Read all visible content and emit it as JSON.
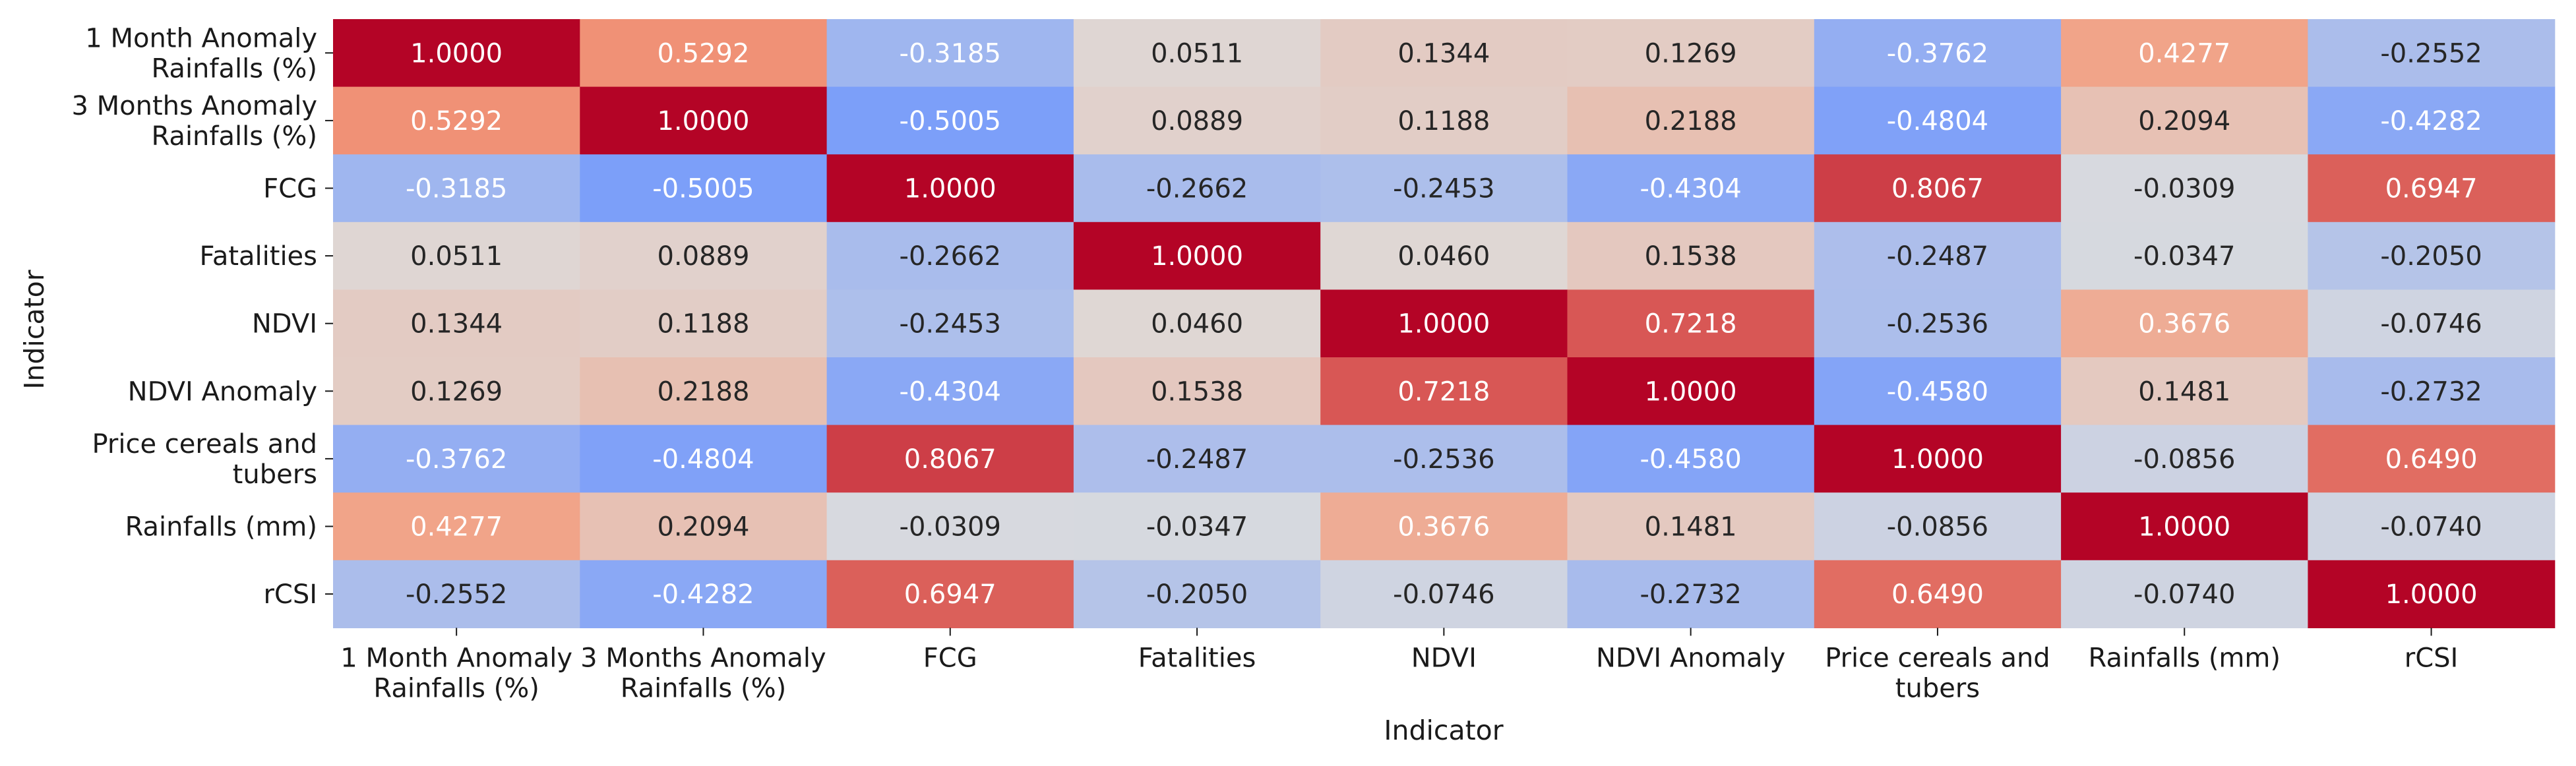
{
  "chart_data": {
    "type": "heatmap",
    "xlabel": "Indicator",
    "ylabel": "Indicator",
    "colormap": "coolwarm",
    "vmin": -1,
    "vmax": 1,
    "colorbar": false,
    "rows": [
      [
        "1 Month Anomaly",
        "Rainfalls (%)"
      ],
      [
        "3 Months Anomaly",
        "Rainfalls (%)"
      ],
      [
        "FCG"
      ],
      [
        "Fatalities"
      ],
      [
        "NDVI"
      ],
      [
        "NDVI Anomaly"
      ],
      [
        "Price cereals and",
        "tubers"
      ],
      [
        "Rainfalls (mm)"
      ],
      [
        "rCSI"
      ]
    ],
    "columns": [
      [
        "1 Month Anomaly",
        "Rainfalls (%)"
      ],
      [
        "3 Months Anomaly",
        "Rainfalls (%)"
      ],
      [
        "FCG"
      ],
      [
        "Fatalities"
      ],
      [
        "NDVI"
      ],
      [
        "NDVI Anomaly"
      ],
      [
        "Price cereals and",
        "tubers"
      ],
      [
        "Rainfalls (mm)"
      ],
      [
        "rCSI"
      ]
    ],
    "values": [
      [
        1.0,
        0.5292,
        -0.3185,
        0.0511,
        0.1344,
        0.1269,
        -0.3762,
        0.4277,
        -0.2552
      ],
      [
        0.5292,
        1.0,
        -0.5005,
        0.0889,
        0.1188,
        0.2188,
        -0.4804,
        0.2094,
        -0.4282
      ],
      [
        -0.3185,
        -0.5005,
        1.0,
        -0.2662,
        -0.2453,
        -0.4304,
        0.8067,
        -0.0309,
        0.6947
      ],
      [
        0.0511,
        0.0889,
        -0.2662,
        1.0,
        0.046,
        0.1538,
        -0.2487,
        -0.0347,
        -0.205
      ],
      [
        0.1344,
        0.1188,
        -0.2453,
        0.046,
        1.0,
        0.7218,
        -0.2536,
        0.3676,
        -0.0746
      ],
      [
        0.1269,
        0.2188,
        -0.4304,
        0.1538,
        0.7218,
        1.0,
        -0.458,
        0.1481,
        -0.2732
      ],
      [
        -0.3762,
        -0.4804,
        0.8067,
        -0.2487,
        -0.2536,
        -0.458,
        1.0,
        -0.0856,
        0.649
      ],
      [
        0.4277,
        0.2094,
        -0.0309,
        -0.0347,
        0.3676,
        0.1481,
        -0.0856,
        1.0,
        -0.074
      ],
      [
        -0.2552,
        -0.4282,
        0.6947,
        -0.205,
        -0.0746,
        -0.2732,
        0.649,
        -0.074,
        1.0
      ]
    ]
  }
}
